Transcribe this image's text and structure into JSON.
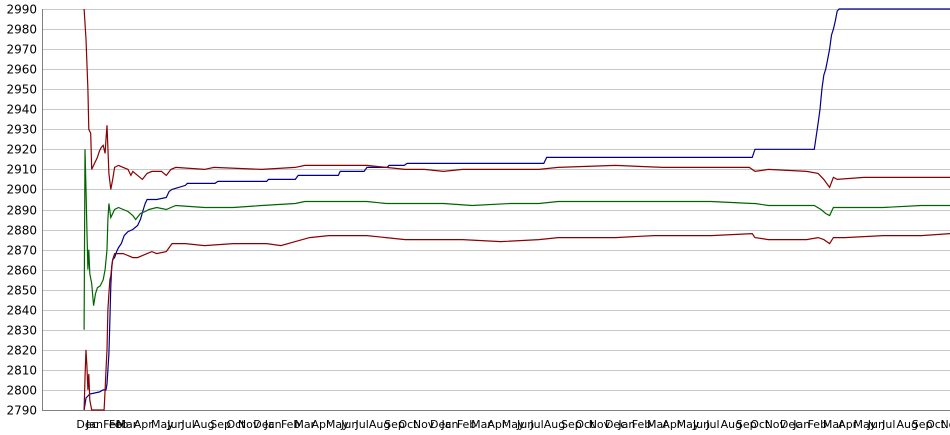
{
  "chart_data": {
    "type": "line",
    "title": "",
    "xlabel": "",
    "ylabel": "",
    "ylim": [
      2790,
      2990
    ],
    "yticks": [
      2790,
      2800,
      2810,
      2820,
      2830,
      2840,
      2850,
      2860,
      2870,
      2880,
      2890,
      2900,
      2910,
      2920,
      2930,
      2940,
      2950,
      2960,
      2970,
      2980,
      2990
    ],
    "grid": true,
    "legend": "none",
    "xlim": [
      0,
      950
    ],
    "x_tick_labels": [
      {
        "x": 36,
        "label": "Dec"
      },
      {
        "x": 46,
        "label": "Jan"
      },
      {
        "x": 64,
        "label": "Feb"
      },
      {
        "x": 70,
        "label": "Feb"
      },
      {
        "x": 78,
        "label": "Mar"
      },
      {
        "x": 96,
        "label": "Apr"
      },
      {
        "x": 114,
        "label": "May"
      },
      {
        "x": 131,
        "label": "Jun"
      },
      {
        "x": 146,
        "label": "Jul"
      },
      {
        "x": 158,
        "label": "Aug"
      },
      {
        "x": 176,
        "label": "Sep"
      },
      {
        "x": 193,
        "label": "Oct"
      },
      {
        "x": 205,
        "label": "Nov"
      },
      {
        "x": 221,
        "label": "Dec"
      },
      {
        "x": 233,
        "label": "Jan"
      },
      {
        "x": 250,
        "label": "Feb"
      },
      {
        "x": 264,
        "label": "Mar"
      },
      {
        "x": 282,
        "label": "Apr"
      },
      {
        "x": 297,
        "label": "May"
      },
      {
        "x": 313,
        "label": "Jun"
      },
      {
        "x": 328,
        "label": "Jul"
      },
      {
        "x": 342,
        "label": "Aug"
      },
      {
        "x": 358,
        "label": "Sep"
      },
      {
        "x": 373,
        "label": "Oct"
      },
      {
        "x": 388,
        "label": "Nov"
      },
      {
        "x": 406,
        "label": "Dec"
      },
      {
        "x": 418,
        "label": "Jan"
      },
      {
        "x": 434,
        "label": "Feb"
      },
      {
        "x": 449,
        "label": "Mar"
      },
      {
        "x": 466,
        "label": "Apr"
      },
      {
        "x": 481,
        "label": "May"
      },
      {
        "x": 497,
        "label": "Jun"
      },
      {
        "x": 511,
        "label": "Jul"
      },
      {
        "x": 525,
        "label": "Aug"
      },
      {
        "x": 543,
        "label": "Sep"
      },
      {
        "x": 558,
        "label": "Oct"
      },
      {
        "x": 572,
        "label": "Nov"
      },
      {
        "x": 589,
        "label": "Dec"
      },
      {
        "x": 603,
        "label": "Jan"
      },
      {
        "x": 617,
        "label": "Feb"
      },
      {
        "x": 633,
        "label": "Mar"
      },
      {
        "x": 649,
        "label": "Apr"
      },
      {
        "x": 664,
        "label": "May"
      },
      {
        "x": 681,
        "label": "Jun"
      },
      {
        "x": 695,
        "label": "Jul"
      },
      {
        "x": 710,
        "label": "Aug"
      },
      {
        "x": 726,
        "label": "Sep"
      },
      {
        "x": 741,
        "label": "Oct"
      },
      {
        "x": 756,
        "label": "Nov"
      },
      {
        "x": 772,
        "label": "Dec"
      },
      {
        "x": 786,
        "label": "Jan"
      },
      {
        "x": 801,
        "label": "Feb"
      },
      {
        "x": 817,
        "label": "Mar"
      },
      {
        "x": 833,
        "label": "Apr"
      },
      {
        "x": 849,
        "label": "May"
      },
      {
        "x": 864,
        "label": "Jun"
      },
      {
        "x": 879,
        "label": "Jul"
      },
      {
        "x": 894,
        "label": "Aug"
      },
      {
        "x": 910,
        "label": "Sep"
      },
      {
        "x": 925,
        "label": "Oct"
      },
      {
        "x": 940,
        "label": "Nov"
      }
    ],
    "series": [
      {
        "color": "#00008b",
        "points": [
          [
            44,
            2790
          ],
          [
            46,
            2796
          ],
          [
            50,
            2798
          ],
          [
            60,
            2799
          ],
          [
            64,
            2800
          ],
          [
            67,
            2800
          ],
          [
            68,
            2803
          ],
          [
            69,
            2810
          ],
          [
            70,
            2818
          ],
          [
            71,
            2835
          ],
          [
            72,
            2852
          ],
          [
            73,
            2862
          ],
          [
            74,
            2865
          ],
          [
            76,
            2866
          ],
          [
            78,
            2869
          ],
          [
            80,
            2871
          ],
          [
            83,
            2873
          ],
          [
            86,
            2877
          ],
          [
            90,
            2879
          ],
          [
            95,
            2880
          ],
          [
            100,
            2882
          ],
          [
            103,
            2885
          ],
          [
            106,
            2890
          ],
          [
            108,
            2893
          ],
          [
            110,
            2895
          ],
          [
            120,
            2895
          ],
          [
            130,
            2896
          ],
          [
            133,
            2899
          ],
          [
            136,
            2900
          ],
          [
            150,
            2902
          ],
          [
            152,
            2903
          ],
          [
            181,
            2903
          ],
          [
            184,
            2904
          ],
          [
            235,
            2904
          ],
          [
            237,
            2905
          ],
          [
            265,
            2905
          ],
          [
            268,
            2907
          ],
          [
            310,
            2907
          ],
          [
            312,
            2909
          ],
          [
            337,
            2909
          ],
          [
            340,
            2911
          ],
          [
            361,
            2911
          ],
          [
            363,
            2912
          ],
          [
            379,
            2912
          ],
          [
            382,
            2913
          ],
          [
            525,
            2913
          ],
          [
            528,
            2916
          ],
          [
            743,
            2916
          ],
          [
            746,
            2920
          ],
          [
            808,
            2920
          ],
          [
            812,
            2933
          ],
          [
            814,
            2940
          ],
          [
            816,
            2950
          ],
          [
            818,
            2957
          ],
          [
            820,
            2960
          ],
          [
            822,
            2965
          ],
          [
            824,
            2970
          ],
          [
            826,
            2977
          ],
          [
            828,
            2980
          ],
          [
            830,
            2984
          ],
          [
            832,
            2989
          ],
          [
            834,
            2990
          ],
          [
            950,
            2990
          ]
        ]
      },
      {
        "color": "#8b0000",
        "points": [
          [
            44,
            2990
          ],
          [
            46,
            2975
          ],
          [
            48,
            2950
          ],
          [
            49,
            2930
          ],
          [
            51,
            2928
          ],
          [
            52,
            2910
          ],
          [
            54,
            2912
          ],
          [
            56,
            2914
          ],
          [
            58,
            2916
          ],
          [
            60,
            2919
          ],
          [
            62,
            2921
          ],
          [
            64,
            2922
          ],
          [
            66,
            2918
          ],
          [
            67,
            2925
          ],
          [
            68,
            2932
          ],
          [
            70,
            2908
          ],
          [
            72,
            2900
          ],
          [
            74,
            2905
          ],
          [
            76,
            2911
          ],
          [
            80,
            2912
          ],
          [
            85,
            2911
          ],
          [
            90,
            2910
          ],
          [
            93,
            2907
          ],
          [
            95,
            2909
          ],
          [
            100,
            2907
          ],
          [
            105,
            2905
          ],
          [
            110,
            2908
          ],
          [
            115,
            2909
          ],
          [
            125,
            2909
          ],
          [
            130,
            2907
          ],
          [
            135,
            2910
          ],
          [
            140,
            2911
          ],
          [
            170,
            2910
          ],
          [
            180,
            2911
          ],
          [
            230,
            2910
          ],
          [
            265,
            2911
          ],
          [
            275,
            2912
          ],
          [
            340,
            2912
          ],
          [
            360,
            2911
          ],
          [
            380,
            2910
          ],
          [
            400,
            2910
          ],
          [
            420,
            2909
          ],
          [
            440,
            2910
          ],
          [
            480,
            2910
          ],
          [
            520,
            2910
          ],
          [
            540,
            2911
          ],
          [
            600,
            2912
          ],
          [
            650,
            2911
          ],
          [
            700,
            2911
          ],
          [
            740,
            2911
          ],
          [
            743,
            2910
          ],
          [
            746,
            2909
          ],
          [
            760,
            2910
          ],
          [
            800,
            2909
          ],
          [
            812,
            2908
          ],
          [
            818,
            2905
          ],
          [
            824,
            2901
          ],
          [
            828,
            2906
          ],
          [
            832,
            2905
          ],
          [
            860,
            2906
          ],
          [
            900,
            2906
          ],
          [
            950,
            2906
          ]
        ]
      },
      {
        "color": "#006400",
        "points": [
          [
            44,
            2830
          ],
          [
            45,
            2920
          ],
          [
            46,
            2900
          ],
          [
            47,
            2880
          ],
          [
            48,
            2860
          ],
          [
            49,
            2870
          ],
          [
            50,
            2858
          ],
          [
            52,
            2853
          ],
          [
            54,
            2842
          ],
          [
            56,
            2848
          ],
          [
            58,
            2851
          ],
          [
            61,
            2852
          ],
          [
            64,
            2855
          ],
          [
            66,
            2860
          ],
          [
            68,
            2870
          ],
          [
            69,
            2885
          ],
          [
            70,
            2893
          ],
          [
            72,
            2886
          ],
          [
            76,
            2890
          ],
          [
            80,
            2891
          ],
          [
            85,
            2890
          ],
          [
            90,
            2889
          ],
          [
            95,
            2887
          ],
          [
            98,
            2885
          ],
          [
            103,
            2888
          ],
          [
            108,
            2889
          ],
          [
            112,
            2890
          ],
          [
            120,
            2891
          ],
          [
            130,
            2890
          ],
          [
            135,
            2891
          ],
          [
            140,
            2892
          ],
          [
            170,
            2891
          ],
          [
            200,
            2891
          ],
          [
            230,
            2892
          ],
          [
            265,
            2893
          ],
          [
            275,
            2894
          ],
          [
            340,
            2894
          ],
          [
            360,
            2893
          ],
          [
            390,
            2893
          ],
          [
            420,
            2893
          ],
          [
            450,
            2892
          ],
          [
            490,
            2893
          ],
          [
            520,
            2893
          ],
          [
            540,
            2894
          ],
          [
            600,
            2894
          ],
          [
            650,
            2894
          ],
          [
            700,
            2894
          ],
          [
            743,
            2893
          ],
          [
            746,
            2893
          ],
          [
            760,
            2892
          ],
          [
            790,
            2892
          ],
          [
            808,
            2892
          ],
          [
            815,
            2890
          ],
          [
            820,
            2888
          ],
          [
            824,
            2887
          ],
          [
            828,
            2891
          ],
          [
            840,
            2891
          ],
          [
            880,
            2891
          ],
          [
            920,
            2892
          ],
          [
            950,
            2892
          ]
        ]
      },
      {
        "color": "#8b0000",
        "points": [
          [
            44,
            2790
          ],
          [
            45,
            2806
          ],
          [
            46,
            2820
          ],
          [
            47,
            2812
          ],
          [
            48,
            2800
          ],
          [
            49,
            2808
          ],
          [
            50,
            2795
          ],
          [
            52,
            2790
          ],
          [
            60,
            2790
          ],
          [
            64,
            2790
          ],
          [
            65,
            2790
          ],
          [
            66,
            2800
          ],
          [
            67,
            2810
          ],
          [
            68,
            2820
          ],
          [
            69,
            2840
          ],
          [
            70,
            2848
          ],
          [
            71,
            2855
          ],
          [
            72,
            2857
          ],
          [
            74,
            2865
          ],
          [
            76,
            2868
          ],
          [
            80,
            2868
          ],
          [
            85,
            2868
          ],
          [
            90,
            2867
          ],
          [
            95,
            2866
          ],
          [
            100,
            2866
          ],
          [
            105,
            2867
          ],
          [
            110,
            2868
          ],
          [
            115,
            2869
          ],
          [
            120,
            2868
          ],
          [
            130,
            2869
          ],
          [
            133,
            2871
          ],
          [
            136,
            2873
          ],
          [
            150,
            2873
          ],
          [
            170,
            2872
          ],
          [
            200,
            2873
          ],
          [
            235,
            2873
          ],
          [
            250,
            2872
          ],
          [
            265,
            2874
          ],
          [
            280,
            2876
          ],
          [
            300,
            2877
          ],
          [
            340,
            2877
          ],
          [
            360,
            2876
          ],
          [
            380,
            2875
          ],
          [
            400,
            2875
          ],
          [
            440,
            2875
          ],
          [
            480,
            2874
          ],
          [
            520,
            2875
          ],
          [
            540,
            2876
          ],
          [
            580,
            2876
          ],
          [
            600,
            2876
          ],
          [
            640,
            2877
          ],
          [
            700,
            2877
          ],
          [
            743,
            2878
          ],
          [
            746,
            2876
          ],
          [
            760,
            2875
          ],
          [
            800,
            2875
          ],
          [
            812,
            2876
          ],
          [
            818,
            2875
          ],
          [
            824,
            2873
          ],
          [
            828,
            2876
          ],
          [
            840,
            2876
          ],
          [
            880,
            2877
          ],
          [
            920,
            2877
          ],
          [
            950,
            2878
          ]
        ]
      }
    ]
  }
}
